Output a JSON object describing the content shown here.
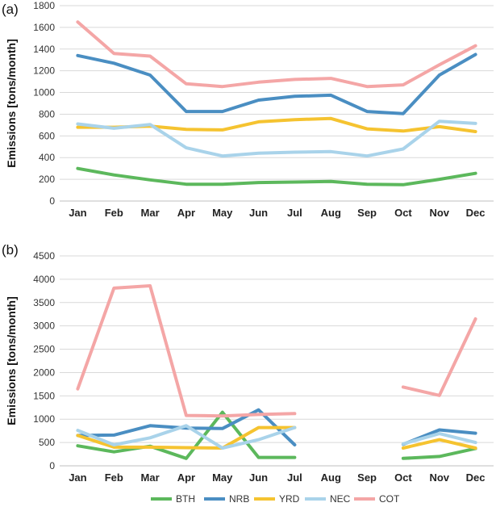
{
  "chart_data": [
    {
      "type": "line",
      "panel_label": "(a)",
      "ylabel": "Emissions [tons/month]",
      "ylim": [
        0,
        1800
      ],
      "yticks": [
        0,
        200,
        400,
        600,
        800,
        1000,
        1200,
        1400,
        1600,
        1800
      ],
      "categories": [
        "Jan",
        "Feb",
        "Mar",
        "Apr",
        "May",
        "Jun",
        "Jul",
        "Aug",
        "Sep",
        "Oct",
        "Nov",
        "Dec"
      ],
      "series": [
        {
          "name": "BTH",
          "color": "#5cb85c",
          "values": [
            300,
            240,
            195,
            155,
            155,
            170,
            175,
            180,
            155,
            150,
            200,
            255
          ]
        },
        {
          "name": "NRB",
          "color": "#4a8ec2",
          "values": [
            1340,
            1270,
            1160,
            825,
            825,
            930,
            965,
            975,
            825,
            805,
            1160,
            1350
          ]
        },
        {
          "name": "YRD",
          "color": "#f5c330",
          "values": [
            680,
            680,
            690,
            660,
            655,
            730,
            750,
            760,
            665,
            645,
            685,
            640
          ]
        },
        {
          "name": "NEC",
          "color": "#a9d3ea",
          "values": [
            710,
            670,
            705,
            490,
            415,
            440,
            450,
            455,
            415,
            480,
            735,
            715
          ]
        },
        {
          "name": "COT",
          "color": "#f4a6a6",
          "values": [
            1650,
            1360,
            1335,
            1080,
            1055,
            1095,
            1120,
            1130,
            1055,
            1070,
            1255,
            1430
          ]
        }
      ]
    },
    {
      "type": "line",
      "panel_label": "(b)",
      "ylabel": "Emissions [tons/month]",
      "ylim": [
        0,
        4500
      ],
      "yticks": [
        0,
        500,
        1000,
        1500,
        2000,
        2500,
        3000,
        3500,
        4000,
        4500
      ],
      "categories": [
        "Jan",
        "Feb",
        "Mar",
        "Apr",
        "May",
        "Jun",
        "Jul",
        "Aug",
        "Sep",
        "Oct",
        "Nov",
        "Dec"
      ],
      "series": [
        {
          "name": "BTH",
          "color": "#5cb85c",
          "values": [
            430,
            300,
            420,
            160,
            1150,
            180,
            180,
            null,
            null,
            160,
            200,
            370
          ]
        },
        {
          "name": "NRB",
          "color": "#4a8ec2",
          "values": [
            650,
            660,
            860,
            810,
            800,
            1200,
            450,
            null,
            null,
            460,
            770,
            700
          ]
        },
        {
          "name": "YRD",
          "color": "#f5c330",
          "values": [
            650,
            400,
            400,
            390,
            380,
            820,
            820,
            null,
            null,
            380,
            560,
            380
          ]
        },
        {
          "name": "NEC",
          "color": "#a9d3ea",
          "values": [
            760,
            450,
            600,
            860,
            380,
            560,
            820,
            null,
            null,
            470,
            690,
            500
          ]
        },
        {
          "name": "COT",
          "color": "#f4a6a6",
          "values": [
            1650,
            3810,
            3860,
            1080,
            1070,
            1100,
            1120,
            null,
            null,
            1690,
            1510,
            3150
          ]
        }
      ]
    }
  ],
  "legend": {
    "placement": "bottom",
    "items": [
      {
        "name": "BTH",
        "color": "#5cb85c"
      },
      {
        "name": "NRB",
        "color": "#4a8ec2"
      },
      {
        "name": "YRD",
        "color": "#f5c330"
      },
      {
        "name": "NEC",
        "color": "#a9d3ea"
      },
      {
        "name": "COT",
        "color": "#f4a6a6"
      }
    ]
  }
}
